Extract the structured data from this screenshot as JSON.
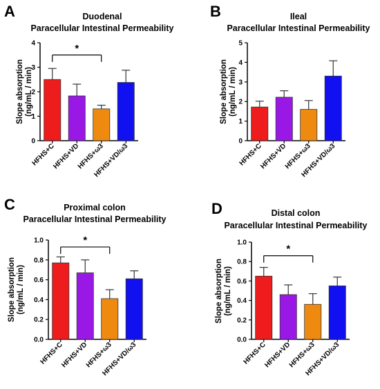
{
  "figure": {
    "panels": [
      "A",
      "B",
      "C",
      "D"
    ],
    "colors": {
      "HFHS+C": "#ee1c1c",
      "HFHS+VD": "#9a18e6",
      "HFHS+ω3": "#ef8a10",
      "HFHS+VD/ω3": "#1010f0"
    }
  },
  "chart_data": [
    {
      "panel": "A",
      "type": "bar",
      "title": "Duodenal",
      "subtitle": "Paracellular Intestinal Permeability",
      "ylabel_line1": "Slope absorption",
      "ylabel_line2": "(ng/mL / min)",
      "categories": [
        "HFHS+C",
        "HFHS+VD",
        "HFHS+ω3",
        "HFHS+VD/ω3"
      ],
      "values": [
        2.5,
        1.83,
        1.3,
        2.38
      ],
      "errors": [
        0.45,
        0.48,
        0.15,
        0.5
      ],
      "ylim": [
        0,
        4
      ],
      "yticks": [
        0,
        1,
        2,
        3,
        4
      ],
      "ytick_labels": [
        "0",
        "1",
        "2",
        "3",
        "4"
      ],
      "significance": {
        "from": 0,
        "to": 2,
        "label": "*",
        "y": 3.5
      },
      "grid": false
    },
    {
      "panel": "B",
      "type": "bar",
      "title": "Ileal",
      "subtitle": "Paracellular Intestinal Permeability",
      "ylabel_line1": "Slope absorption",
      "ylabel_line2": "(ng/mL / min)",
      "categories": [
        "HFHS+C",
        "HFHS+VD",
        "HFHS+ω3",
        "HFHS+VD/ω3"
      ],
      "values": [
        1.72,
        2.22,
        1.6,
        3.3
      ],
      "errors": [
        0.3,
        0.33,
        0.45,
        0.78
      ],
      "ylim": [
        0,
        5
      ],
      "yticks": [
        0,
        1,
        2,
        3,
        4,
        5
      ],
      "ytick_labels": [
        "0",
        "1",
        "2",
        "3",
        "4",
        "5"
      ],
      "grid": false
    },
    {
      "panel": "C",
      "type": "bar",
      "title": "Proximal colon",
      "subtitle": "Paracellular Intestinal Permeability",
      "ylabel_line1": "Slope absorption",
      "ylabel_line2": "(ng/mL / min)",
      "categories": [
        "HFHS+C",
        "HFHS+VD",
        "HFHS+ω3",
        "HFHS+VD/ω3"
      ],
      "values": [
        0.77,
        0.67,
        0.41,
        0.61
      ],
      "errors": [
        0.06,
        0.13,
        0.09,
        0.08
      ],
      "ylim": [
        0,
        1.0
      ],
      "yticks": [
        0,
        0.2,
        0.4,
        0.6,
        0.8,
        1.0
      ],
      "ytick_labels": [
        "0.0",
        "0.2",
        "0.4",
        "0.6",
        "0.8",
        "1.0"
      ],
      "significance": {
        "from": 0,
        "to": 2,
        "label": "*",
        "y": 0.93
      },
      "grid": false
    },
    {
      "panel": "D",
      "type": "bar",
      "title": "Distal colon",
      "subtitle": "Paracellular Intestinal Permeability",
      "ylabel_line1": "Slope absorption",
      "ylabel_line2": "(ng/mL / min)",
      "categories": [
        "HFHS+C",
        "HFHS+VD",
        "HFHS+ω3",
        "HFHS+VD/ω3"
      ],
      "values": [
        0.65,
        0.46,
        0.36,
        0.55
      ],
      "errors": [
        0.09,
        0.1,
        0.11,
        0.09
      ],
      "ylim": [
        0,
        1.0
      ],
      "yticks": [
        0,
        0.2,
        0.4,
        0.6,
        0.8,
        1.0
      ],
      "ytick_labels": [
        "0.0",
        "0.2",
        "0.4",
        "0.6",
        "0.8",
        "1.0"
      ],
      "significance": {
        "from": 0,
        "to": 2,
        "label": "*",
        "y": 0.86
      },
      "grid": false
    }
  ]
}
